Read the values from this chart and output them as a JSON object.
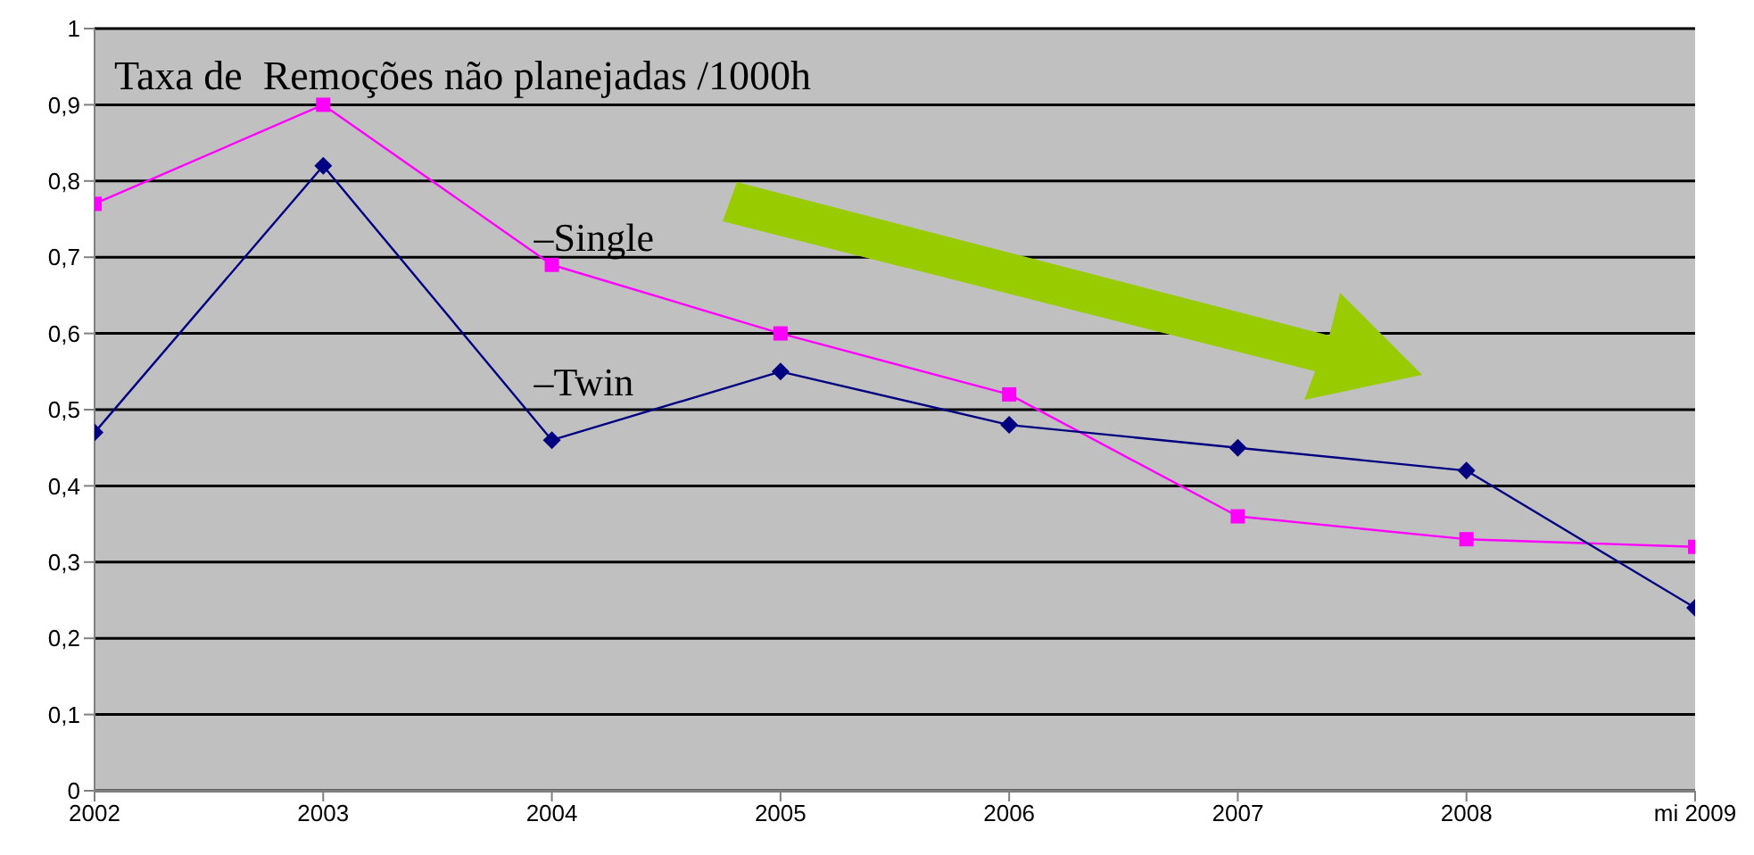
{
  "chart_data": {
    "type": "line",
    "title": "Taxa de  Remoções não planejadas /1000h",
    "categories": [
      "2002",
      "2003",
      "2004",
      "2005",
      "2006",
      "2007",
      "2008",
      "mi 2009"
    ],
    "series": [
      {
        "name": "–Single",
        "color": "#ff00ff",
        "marker": "square",
        "values": [
          0.77,
          0.9,
          0.69,
          0.6,
          0.52,
          0.36,
          0.33,
          0.32
        ]
      },
      {
        "name": "–Twin",
        "color": "#000080",
        "marker": "diamond",
        "values": [
          0.47,
          0.82,
          0.46,
          0.55,
          0.48,
          0.45,
          0.42,
          0.24
        ]
      }
    ],
    "ylim": [
      0,
      1
    ],
    "yticks": [
      {
        "value": 0,
        "label": "0"
      },
      {
        "value": 0.1,
        "label": "0,1"
      },
      {
        "value": 0.2,
        "label": "0,2"
      },
      {
        "value": 0.3,
        "label": "0,3"
      },
      {
        "value": 0.4,
        "label": "0,4"
      },
      {
        "value": 0.5,
        "label": "0,5"
      },
      {
        "value": 0.6,
        "label": "0,6"
      },
      {
        "value": 0.7,
        "label": "0,7"
      },
      {
        "value": 0.8,
        "label": "0,8"
      },
      {
        "value": 0.9,
        "label": "0,9"
      },
      {
        "value": 1,
        "label": "1"
      }
    ],
    "grid": "y",
    "legend": false,
    "line_style": "solid"
  }
}
